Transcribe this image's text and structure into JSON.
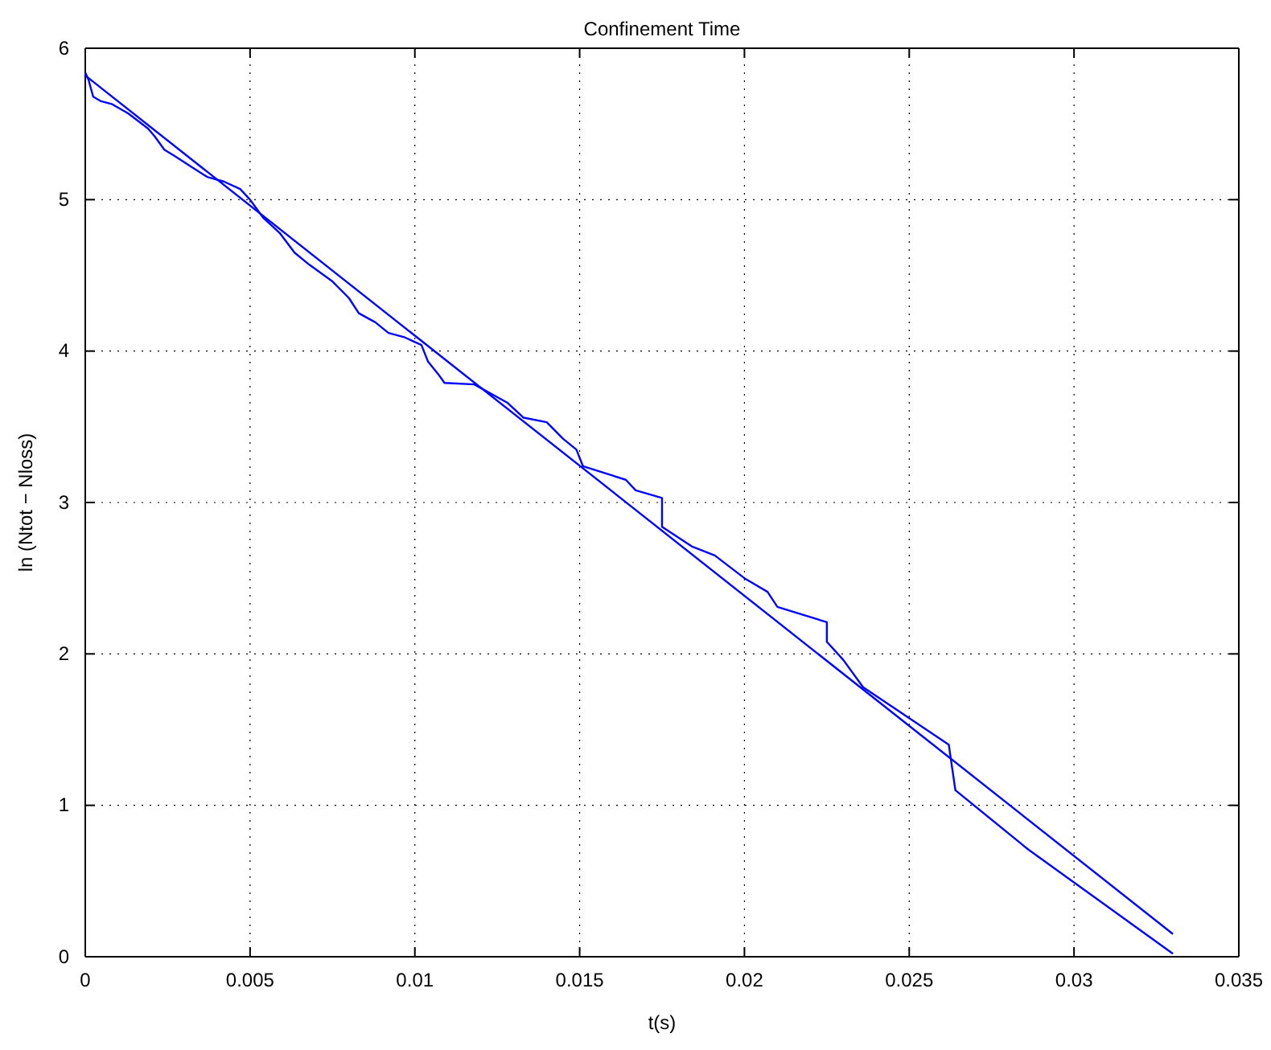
{
  "chart_data": {
    "type": "line",
    "title": "Confinement Time",
    "xlabel": "t(s)",
    "ylabel": "ln (Ntot − Nloss)",
    "xlim": [
      0,
      0.035
    ],
    "xticks": [
      0,
      0.005,
      0.01,
      0.015,
      0.02,
      0.025,
      0.03,
      0.035
    ],
    "ylim": [
      0,
      6
    ],
    "yticks": [
      0,
      1,
      2,
      3,
      4,
      5,
      6
    ],
    "grid": true,
    "line_style": "solid",
    "series": [
      {
        "color": "#0000ff",
        "x": [
          0,
          0.0001,
          0.00024,
          0.00048,
          0.00082,
          0.0013,
          0.0019,
          0.0021,
          0.0024,
          0.0027,
          0.0032,
          0.0037,
          0.0042,
          0.0047,
          0.005,
          0.0054,
          0.0059,
          0.00635,
          0.0068,
          0.0075,
          0.008,
          0.0083,
          0.0088,
          0.0092,
          0.0097,
          0.0102,
          0.0104,
          0.0107,
          0.0109,
          0.0118,
          0.0128,
          0.0133,
          0.014,
          0.0145,
          0.0149,
          0.0151,
          0.0164,
          0.0167,
          0.0175,
          0.0175,
          0.0184,
          0.0191,
          0.02,
          0.0207,
          0.021,
          0.0225,
          0.0225,
          0.023,
          0.0236,
          0.0262,
          0.0264,
          0.0286,
          0.033
        ],
        "values": [
          5.84,
          5.79,
          5.68,
          5.65,
          5.63,
          5.57,
          5.47,
          5.42,
          5.33,
          5.29,
          5.22,
          5.15,
          5.12,
          5.07,
          5.0,
          4.88,
          4.78,
          4.65,
          4.57,
          4.46,
          4.35,
          4.25,
          4.19,
          4.12,
          4.09,
          4.04,
          3.93,
          3.85,
          3.79,
          3.78,
          3.66,
          3.56,
          3.53,
          3.42,
          3.35,
          3.24,
          3.15,
          3.08,
          3.03,
          2.84,
          2.71,
          2.65,
          2.5,
          2.41,
          2.31,
          2.21,
          2.08,
          1.96,
          1.78,
          1.4,
          1.1,
          0.71,
          0.02
        ]
      },
      {
        "color": "#0000ff",
        "x": [
          0,
          0.033
        ],
        "values": [
          5.82,
          0.15
        ]
      }
    ]
  }
}
